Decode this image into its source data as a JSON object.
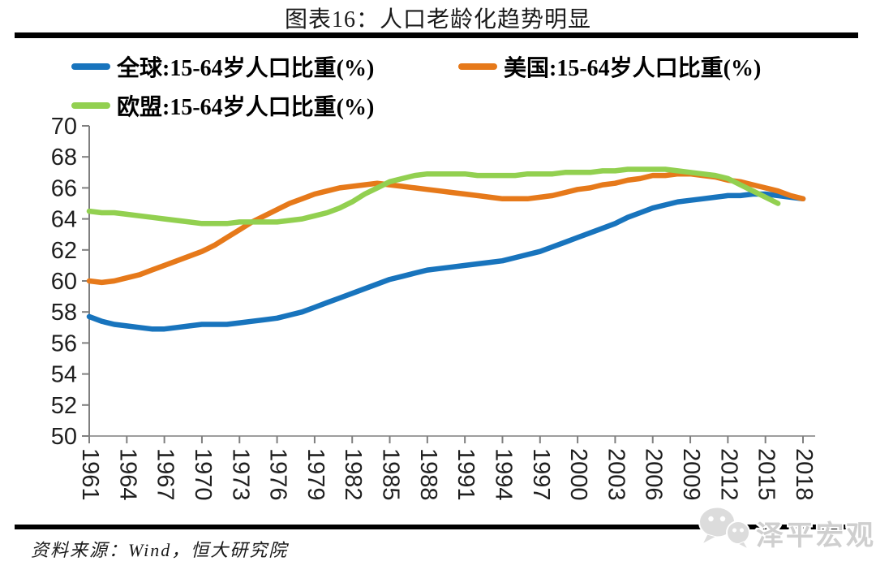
{
  "chart_data": {
    "type": "line",
    "title": "图表16：人口老龄化趋势明显",
    "xlabel": "",
    "ylabel": "",
    "ylim": [
      50,
      70
    ],
    "y_ticks": [
      50,
      52,
      54,
      56,
      58,
      60,
      62,
      64,
      66,
      68,
      70
    ],
    "x_range": [
      1961,
      2018
    ],
    "x_ticks": [
      1961,
      1964,
      1967,
      1970,
      1973,
      1976,
      1979,
      1982,
      1985,
      1988,
      1991,
      1994,
      1997,
      2000,
      2003,
      2006,
      2009,
      2012,
      2015,
      2018
    ],
    "grid": false,
    "legend_position": "top-left",
    "axis_color": "#7f7f7f",
    "series": [
      {
        "id": "global",
        "name": "全球:15-64岁人口比重(%)",
        "color": "#1874BD",
        "start_year": 1961,
        "end_year": 2018,
        "values": [
          57.7,
          57.4,
          57.2,
          57.1,
          57.0,
          56.9,
          56.9,
          57.0,
          57.1,
          57.2,
          57.2,
          57.2,
          57.3,
          57.4,
          57.5,
          57.6,
          57.8,
          58.0,
          58.3,
          58.6,
          58.9,
          59.2,
          59.5,
          59.8,
          60.1,
          60.3,
          60.5,
          60.7,
          60.8,
          60.9,
          61.0,
          61.1,
          61.2,
          61.3,
          61.5,
          61.7,
          61.9,
          62.2,
          62.5,
          62.8,
          63.1,
          63.4,
          63.7,
          64.1,
          64.4,
          64.7,
          64.9,
          65.1,
          65.2,
          65.3,
          65.4,
          65.5,
          65.5,
          65.6,
          65.6,
          65.5,
          65.4,
          65.3
        ]
      },
      {
        "id": "us",
        "name": "美国:15-64岁人口比重(%)",
        "color": "#E6791A",
        "start_year": 1961,
        "end_year": 2018,
        "values": [
          60.0,
          59.9,
          60.0,
          60.2,
          60.4,
          60.7,
          61.0,
          61.3,
          61.6,
          61.9,
          62.3,
          62.8,
          63.3,
          63.8,
          64.2,
          64.6,
          65.0,
          65.3,
          65.6,
          65.8,
          66.0,
          66.1,
          66.2,
          66.3,
          66.2,
          66.1,
          66.0,
          65.9,
          65.8,
          65.7,
          65.6,
          65.5,
          65.4,
          65.3,
          65.3,
          65.3,
          65.4,
          65.5,
          65.7,
          65.9,
          66.0,
          66.2,
          66.3,
          66.5,
          66.6,
          66.8,
          66.8,
          66.9,
          66.9,
          66.8,
          66.7,
          66.5,
          66.4,
          66.2,
          66.0,
          65.8,
          65.5,
          65.3
        ]
      },
      {
        "id": "eu",
        "name": "欧盟:15-64岁人口比重(%)",
        "color": "#92D050",
        "start_year": 1961,
        "end_year": 2016,
        "values": [
          64.5,
          64.4,
          64.4,
          64.3,
          64.2,
          64.1,
          64.0,
          63.9,
          63.8,
          63.7,
          63.7,
          63.7,
          63.8,
          63.8,
          63.8,
          63.8,
          63.9,
          64.0,
          64.2,
          64.4,
          64.7,
          65.1,
          65.6,
          66.0,
          66.4,
          66.6,
          66.8,
          66.9,
          66.9,
          66.9,
          66.9,
          66.8,
          66.8,
          66.8,
          66.8,
          66.9,
          66.9,
          66.9,
          67.0,
          67.0,
          67.0,
          67.1,
          67.1,
          67.2,
          67.2,
          67.2,
          67.2,
          67.1,
          67.0,
          66.9,
          66.8,
          66.6,
          66.2,
          65.8,
          65.4,
          65.0
        ]
      }
    ]
  },
  "footer": {
    "source_text": "资料来源：Wind，恒大研究院",
    "watermark_text": "泽平宏观"
  }
}
